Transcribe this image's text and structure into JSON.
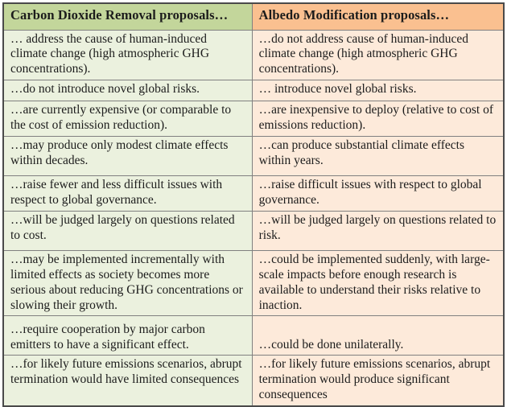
{
  "table": {
    "columns": [
      {
        "header": "Carbon Dioxide Removal proposals…"
      },
      {
        "header": "Albedo Modification proposals…"
      }
    ],
    "rows": [
      {
        "left": "… address the cause of human-induced climate change (high atmospheric GHG concentrations).",
        "right": "…do not address cause of human-induced climate change (high atmospheric GHG concentrations)."
      },
      {
        "left": "…do not introduce novel global risks.",
        "right": "… introduce novel global risks."
      },
      {
        "left": "…are currently expensive (or comparable to the cost of emission reduction).",
        "right": "…are inexpensive to deploy (relative to cost of emissions reduction)."
      },
      {
        "left": "…may produce only modest climate effects within decades.",
        "right": "…can produce substantial climate effects within years."
      },
      {
        "left": "…raise fewer and less difficult issues with respect to global governance.",
        "right": "…raise difficult issues with respect to global governance."
      },
      {
        "left": "…will be judged largely on questions related to cost.",
        "right": "…will be judged largely on questions related to risk."
      },
      {
        "left": "…may be implemented incrementally with limited effects as society becomes more serious about reducing GHG concentrations or slowing their growth.",
        "right": "…could be implemented suddenly, with large-scale impacts before enough research is available to understand their risks relative to inaction."
      },
      {
        "left": "…require cooperation by major carbon emitters to have a significant effect.",
        "right": "…could be done unilaterally."
      },
      {
        "left": "…for likely future emissions scenarios, abrupt termination would have limited consequences",
        "right": "…for likely future emissions scenarios, abrupt termination would produce significant consequences"
      }
    ]
  },
  "colors": {
    "header_left_bg": "#c3d69b",
    "header_right_bg": "#fac090",
    "cell_left_bg": "#ebf1de",
    "cell_right_bg": "#fdeada",
    "inner_border": "#808080",
    "outer_border": "#4a4a4a"
  }
}
